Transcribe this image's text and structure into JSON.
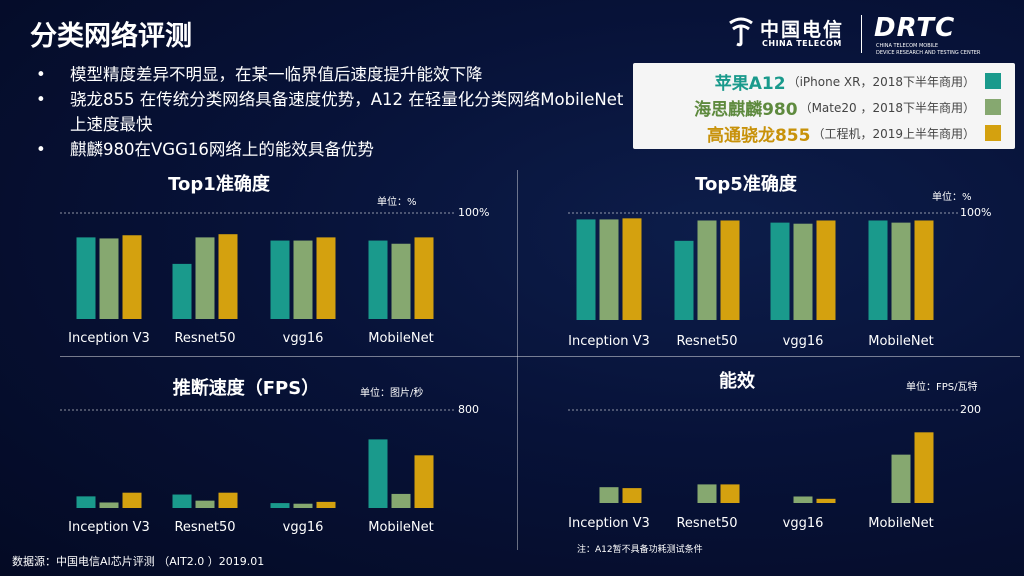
{
  "title": "分类网络评测",
  "bullets": [
    "模型精度差异不明显，在某一临界值后速度提升能效下降",
    "骁龙855 在传统分类网络具备速度优势，A12 在轻量化分类网络MobileNet上速度最快",
    "麒麟980在VGG16网络上的能效具备优势"
  ],
  "logo": {
    "ct_cn": "中国电信",
    "ct_en": "CHINA TELECOM",
    "dr": "DRTC",
    "dr_sub1": "CHINA TELECOM MOBILE",
    "dr_sub2": "DEVICE RESEARCH AND TESTING CENTER"
  },
  "legend": [
    {
      "name": "苹果A12",
      "detail": "（iPhone XR，2018下半年商用）",
      "color": "#1a9a8c"
    },
    {
      "name": "海思麒麟980",
      "detail": "（Mate20 ，2018下半年商用）",
      "color": "#86a870"
    },
    {
      "name": "高通骁龙855",
      "detail": "（工程机，2019上半年商用）",
      "color": "#d4a10f"
    }
  ],
  "colors": {
    "a12": "#1a9a8c",
    "kirin": "#86a870",
    "snapdragon": "#d4a10f"
  },
  "chart_data": [
    {
      "type": "bar",
      "title": "Top1准确度",
      "unit": "单位：%",
      "max_label": "100%",
      "ylim": [
        0,
        100
      ],
      "categories": [
        "Inception V3",
        "Resnet50",
        "vgg16",
        "MobileNet"
      ],
      "series": [
        {
          "values": [
            77,
            52,
            74,
            74
          ]
        },
        {
          "values": [
            76,
            77,
            74,
            71
          ]
        },
        {
          "values": [
            79,
            80,
            77,
            77
          ]
        }
      ]
    },
    {
      "type": "bar",
      "title": "Top5准确度",
      "unit": "单位：%",
      "max_label": "100%",
      "ylim": [
        0,
        100
      ],
      "categories": [
        "Inception V3",
        "Resnet50",
        "vgg16",
        "MobileNet"
      ],
      "series": [
        {
          "values": [
            94,
            74,
            91,
            93
          ]
        },
        {
          "values": [
            94,
            93,
            90,
            91
          ]
        },
        {
          "values": [
            95,
            93,
            93,
            93
          ]
        }
      ]
    },
    {
      "type": "bar",
      "title": "推断速度（FPS）",
      "unit": "单位：图片/秒",
      "max_label": "800",
      "ylim": [
        0,
        800
      ],
      "categories": [
        "Inception V3",
        "Resnet50",
        "vgg16",
        "MobileNet"
      ],
      "series": [
        {
          "values": [
            95,
            110,
            40,
            560
          ]
        },
        {
          "values": [
            45,
            60,
            35,
            115
          ]
        },
        {
          "values": [
            125,
            125,
            50,
            430
          ]
        }
      ]
    },
    {
      "type": "bar",
      "title": "能效",
      "unit": "单位：FPS/瓦特",
      "max_label": "200",
      "ylim": [
        0,
        200
      ],
      "categories": [
        "Inception V3",
        "Resnet50",
        "vgg16",
        "MobileNet"
      ],
      "series": [
        {
          "values": [
            null,
            null,
            null,
            null
          ]
        },
        {
          "values": [
            34,
            40,
            14,
            104
          ]
        },
        {
          "values": [
            32,
            40,
            9,
            152
          ]
        }
      ]
    }
  ],
  "footer": "数据源：中国电信AI芯片评测 （AIT2.0 ）2019.01",
  "note": "注：A12暂不具备功耗测试条件"
}
